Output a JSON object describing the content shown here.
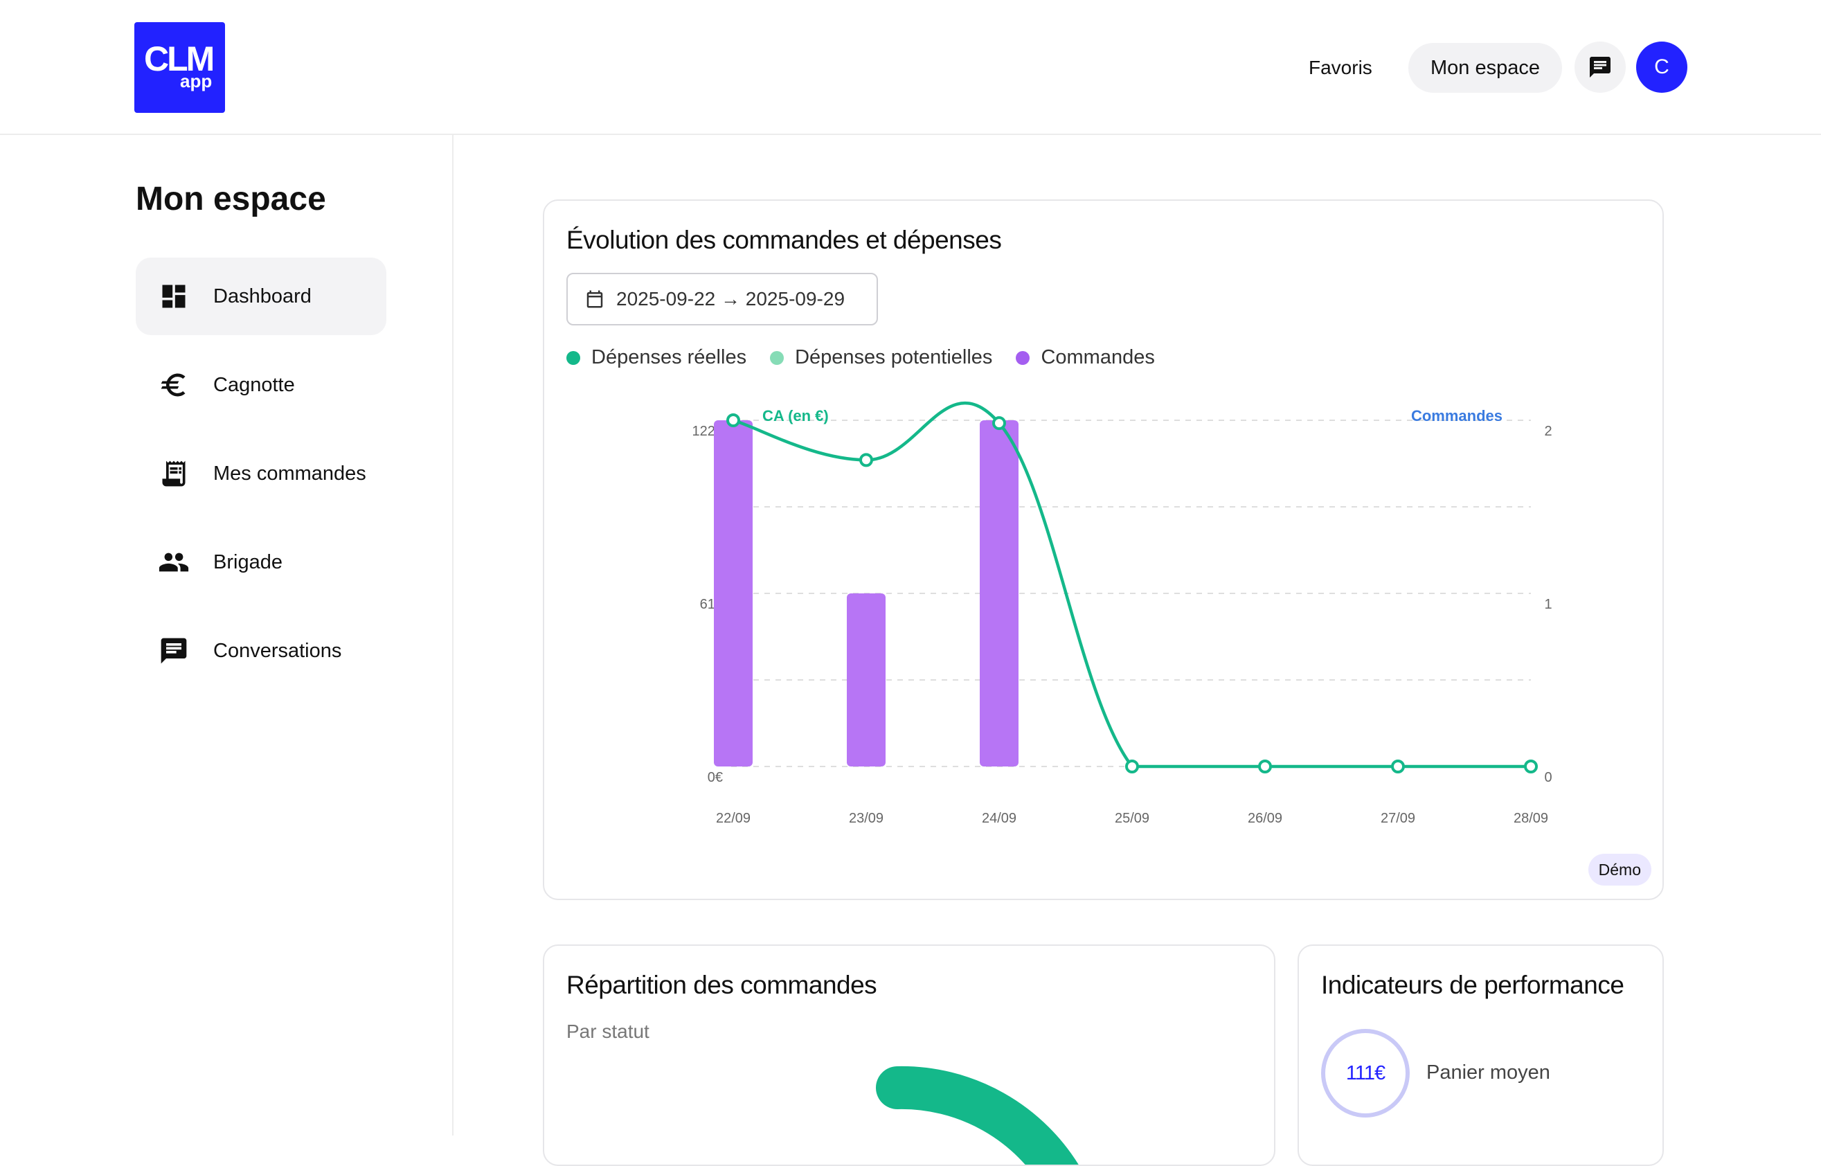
{
  "header": {
    "logo_main": "CLM",
    "logo_sub": "app",
    "nav": {
      "favorites_label": "Favoris",
      "space_label": "Mon espace",
      "avatar_initial": "C"
    }
  },
  "sidebar": {
    "title": "Mon espace",
    "items": [
      {
        "label": "Dashboard",
        "icon": "dashboard-icon",
        "active": true
      },
      {
        "label": "Cagnotte",
        "icon": "euro-icon",
        "active": false
      },
      {
        "label": "Mes commandes",
        "icon": "receipt-icon",
        "active": false
      },
      {
        "label": "Brigade",
        "icon": "people-icon",
        "active": false
      },
      {
        "label": "Conversations",
        "icon": "chat-icon",
        "active": false
      }
    ]
  },
  "main": {
    "evolution_card": {
      "title": "Évolution des commandes et dépenses",
      "date_range": "2025-09-22 → 2025-09-29",
      "legend": [
        {
          "label": "Dépenses réelles",
          "color": "#14b88a"
        },
        {
          "label": "Dépenses potentielles",
          "color": "#86dcb6"
        },
        {
          "label": "Commandes",
          "color": "#a45ef0"
        }
      ],
      "badge": "Démo"
    },
    "repartition_card": {
      "title": "Répartition des commandes",
      "subtitle": "Par statut"
    },
    "kpi_card": {
      "title": "Indicateurs de performance",
      "kpi_value": "111€",
      "kpi_label": "Panier moyen"
    }
  },
  "chart_data": {
    "type": "bar",
    "categories": [
      "22/09",
      "23/09",
      "24/09",
      "25/09",
      "26/09",
      "27/09",
      "28/09"
    ],
    "left_axis_label": "CA (en €)",
    "right_axis_label": "Commandes",
    "left_ticks": [
      "0€",
      "61€",
      "122€"
    ],
    "right_ticks": [
      "0",
      "1",
      "2"
    ],
    "ylim_left": [
      0,
      122
    ],
    "ylim_right": [
      0,
      2
    ],
    "grid": true,
    "series": [
      {
        "name": "Commandes",
        "type": "bar",
        "axis": "right",
        "color": "#b775f5",
        "values": [
          2,
          1,
          2,
          0,
          0,
          0,
          0
        ]
      },
      {
        "name": "Dépenses réelles",
        "type": "line",
        "axis": "left",
        "color": "#14b88a",
        "values": [
          122,
          108,
          121,
          0,
          0,
          0,
          0
        ]
      }
    ]
  }
}
